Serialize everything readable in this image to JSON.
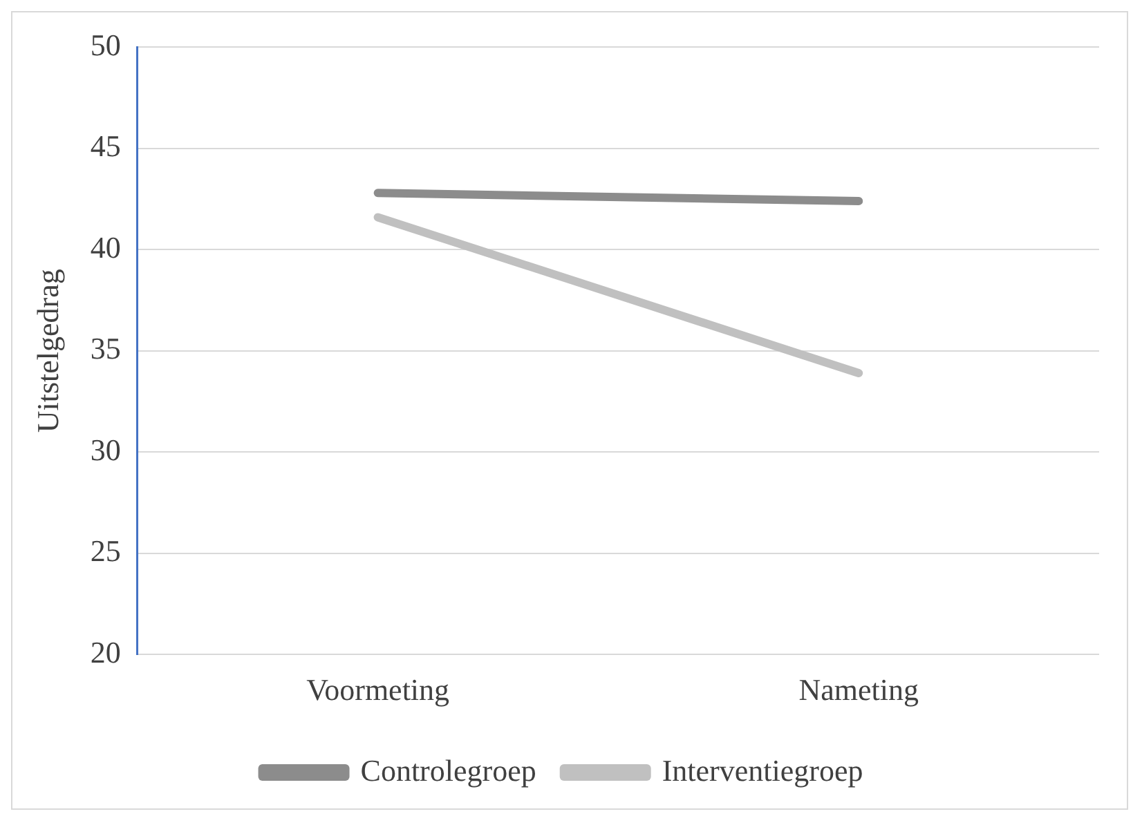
{
  "chart_data": {
    "type": "line",
    "ylabel": "Uitstelgedrag",
    "categories": [
      "Voormeting",
      "Nameting"
    ],
    "series": [
      {
        "name": "Controlegroep",
        "color": "#8c8c8c",
        "values": [
          42.8,
          42.4
        ]
      },
      {
        "name": "Interventiegroep",
        "color": "#c0c0c0",
        "values": [
          41.6,
          33.9
        ]
      }
    ],
    "ylim": [
      20,
      50
    ],
    "yticks": [
      20,
      25,
      30,
      35,
      40,
      45,
      50
    ],
    "grid": "y",
    "legend": "bottom",
    "marker": "none",
    "line_style": "solid"
  }
}
